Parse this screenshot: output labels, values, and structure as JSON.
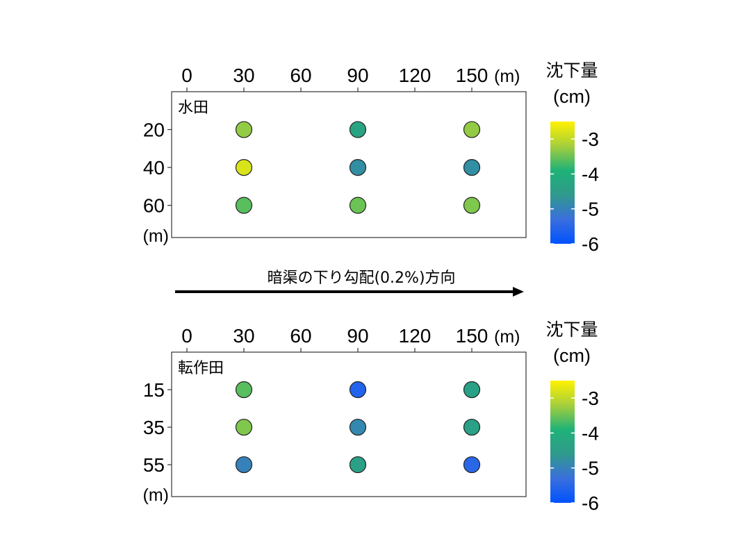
{
  "direction_label": "暗渠の下り勾配(0.2%)方向",
  "colormap": {
    "stops": [
      "#0052ff",
      "#3a6fdd",
      "#2f9a8c",
      "#1fb277",
      "#a6cf3c",
      "#fff200"
    ],
    "vmin": -6,
    "vmax": -2.5
  },
  "chart_data": [
    {
      "type": "scatter",
      "title": "水田",
      "x_ticks": [
        "0",
        "30",
        "60",
        "90",
        "120",
        "150"
      ],
      "x_unit": "(m)",
      "y_ticks": [
        "20",
        "40",
        "60"
      ],
      "y_unit": "(m)",
      "xlim": [
        -5,
        180
      ],
      "ylim": [
        0,
        77
      ],
      "colorbar": {
        "title": "沈下量",
        "unit": "(cm)",
        "ticks": [
          "-3",
          "-4",
          "-5",
          "-6"
        ],
        "range": [
          -6,
          -2.5
        ]
      },
      "points": [
        {
          "x": 30,
          "y": 20,
          "value": -3.3
        },
        {
          "x": 90,
          "y": 20,
          "value": -4.3
        },
        {
          "x": 150,
          "y": 20,
          "value": -3.3
        },
        {
          "x": 30,
          "y": 40,
          "value": -2.8
        },
        {
          "x": 90,
          "y": 40,
          "value": -4.8
        },
        {
          "x": 150,
          "y": 40,
          "value": -4.8
        },
        {
          "x": 30,
          "y": 60,
          "value": -3.6
        },
        {
          "x": 90,
          "y": 60,
          "value": -3.5
        },
        {
          "x": 150,
          "y": 60,
          "value": -3.4
        }
      ]
    },
    {
      "type": "scatter",
      "title": "転作田",
      "x_ticks": [
        "0",
        "30",
        "60",
        "90",
        "120",
        "150"
      ],
      "x_unit": "(m)",
      "y_ticks": [
        "15",
        "35",
        "55"
      ],
      "y_unit": "(m)",
      "xlim": [
        -5,
        180
      ],
      "ylim": [
        -5,
        72
      ],
      "colorbar": {
        "title": "沈下量",
        "unit": "(cm)",
        "ticks": [
          "-3",
          "-4",
          "-5",
          "-6"
        ],
        "range": [
          -6,
          -2.5
        ]
      },
      "points": [
        {
          "x": 30,
          "y": 15,
          "value": -3.6
        },
        {
          "x": 90,
          "y": 15,
          "value": -5.6
        },
        {
          "x": 150,
          "y": 15,
          "value": -4.4
        },
        {
          "x": 30,
          "y": 35,
          "value": -3.4
        },
        {
          "x": 90,
          "y": 35,
          "value": -4.9
        },
        {
          "x": 150,
          "y": 35,
          "value": -4.4
        },
        {
          "x": 30,
          "y": 55,
          "value": -5.0
        },
        {
          "x": 90,
          "y": 55,
          "value": -4.4
        },
        {
          "x": 150,
          "y": 55,
          "value": -5.5
        }
      ]
    }
  ]
}
